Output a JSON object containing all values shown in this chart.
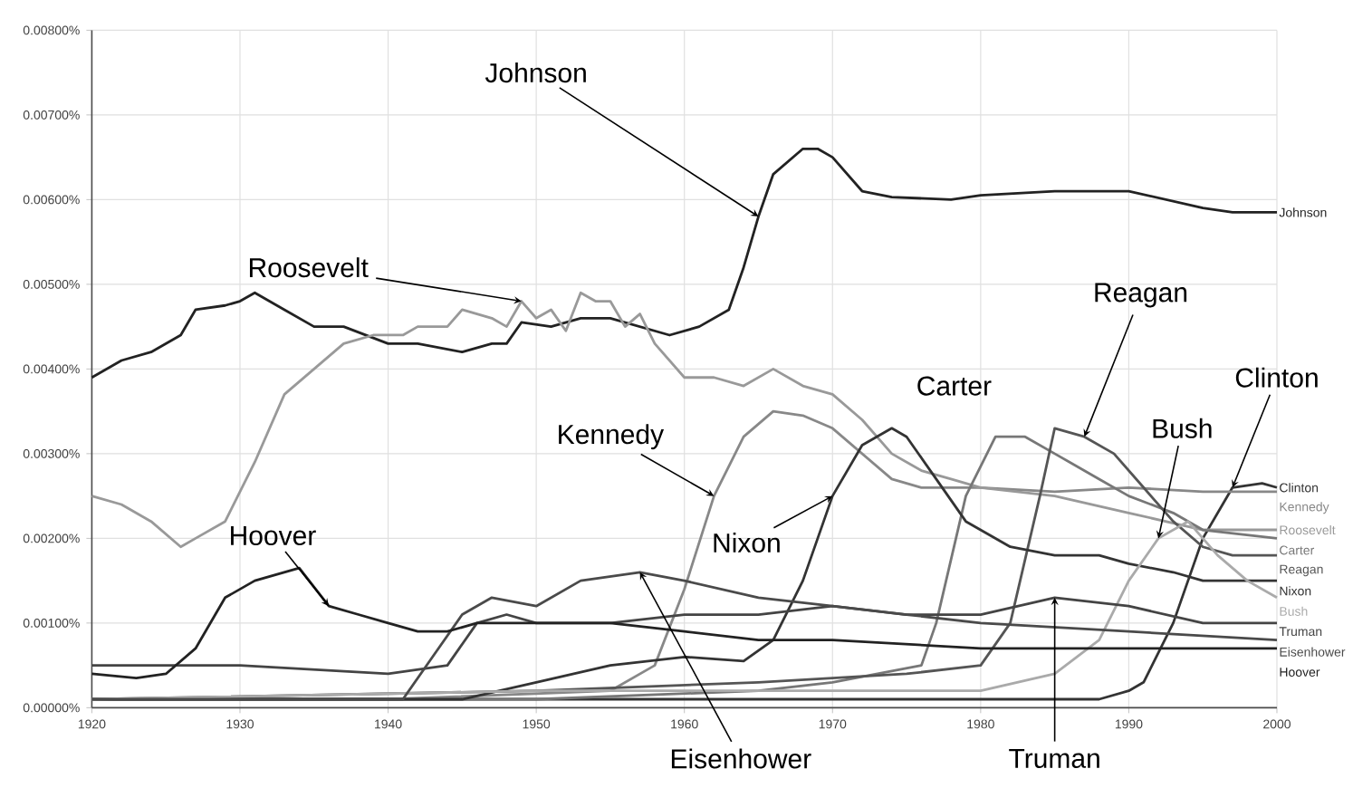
{
  "chart_data": {
    "type": "line",
    "grid": true,
    "xlim": [
      1920,
      2000
    ],
    "xticks": [
      1920,
      1930,
      1940,
      1950,
      1960,
      1970,
      1980,
      1990,
      2000
    ],
    "ylim": [
      0,
      0.008
    ],
    "yticks": [
      {
        "value": 0,
        "label": "0.00000%"
      },
      {
        "value": 0.001,
        "label": "0.00100%"
      },
      {
        "value": 0.002,
        "label": "0.00200%"
      },
      {
        "value": 0.003,
        "label": "0.00300%"
      },
      {
        "value": 0.004,
        "label": "0.00400%"
      },
      {
        "value": 0.005,
        "label": "0.00500%"
      },
      {
        "value": 0.006,
        "label": "0.00600%"
      },
      {
        "value": 0.007,
        "label": "0.00700%"
      },
      {
        "value": 0.008,
        "label": "0.00800%"
      }
    ],
    "series": [
      {
        "name": "Johnson",
        "color": "#222222",
        "x": [
          1920,
          1922,
          1924,
          1926,
          1927,
          1929,
          1930,
          1931,
          1933,
          1935,
          1937,
          1940,
          1942,
          1945,
          1947,
          1948,
          1949,
          1951,
          1953,
          1955,
          1957,
          1959,
          1961,
          1963,
          1964,
          1965,
          1966,
          1968,
          1969,
          1970,
          1972,
          1974,
          1978,
          1980,
          1985,
          1990,
          1995,
          1997,
          2000
        ],
        "values": [
          0.0039,
          0.0041,
          0.0042,
          0.0044,
          0.0047,
          0.00475,
          0.0048,
          0.0049,
          0.0047,
          0.0045,
          0.0045,
          0.0043,
          0.0043,
          0.0042,
          0.0043,
          0.0043,
          0.00455,
          0.0045,
          0.0046,
          0.0046,
          0.0045,
          0.0044,
          0.0045,
          0.0047,
          0.0052,
          0.0058,
          0.0063,
          0.0066,
          0.0066,
          0.0065,
          0.0061,
          0.00603,
          0.006,
          0.00605,
          0.0061,
          0.0061,
          0.0059,
          0.00585,
          0.00585
        ]
      },
      {
        "name": "Clinton",
        "color": "#333333",
        "x": [
          1920,
          1950,
          1980,
          1988,
          1990,
          1991,
          1993,
          1995,
          1997,
          1999,
          2000
        ],
        "values": [
          0.0001,
          0.0001,
          0.0001,
          0.0001,
          0.0002,
          0.0003,
          0.001,
          0.002,
          0.0026,
          0.00265,
          0.0026
        ]
      },
      {
        "name": "Kennedy",
        "color": "#888888",
        "x": [
          1920,
          1940,
          1955,
          1958,
          1960,
          1962,
          1964,
          1966,
          1968,
          1970,
          1972,
          1974,
          1976,
          1978,
          1980,
          1985,
          1990,
          1995,
          2000
        ],
        "values": [
          0.0001,
          0.0001,
          0.0002,
          0.0005,
          0.0014,
          0.0025,
          0.0032,
          0.0035,
          0.00345,
          0.0033,
          0.003,
          0.0027,
          0.0026,
          0.0026,
          0.0026,
          0.00255,
          0.0026,
          0.00255,
          0.00255
        ]
      },
      {
        "name": "Roosevelt",
        "color": "#999999",
        "x": [
          1920,
          1922,
          1924,
          1926,
          1927,
          1929,
          1931,
          1933,
          1935,
          1937,
          1939,
          1941,
          1942,
          1944,
          1945,
          1947,
          1948,
          1949,
          1950,
          1951,
          1952,
          1953,
          1954,
          1955,
          1956,
          1957,
          1958,
          1960,
          1962,
          1964,
          1966,
          1968,
          1970,
          1972,
          1974,
          1976,
          1978,
          1980,
          1985,
          1990,
          1995,
          2000
        ],
        "values": [
          0.0025,
          0.0024,
          0.0022,
          0.0019,
          0.002,
          0.0022,
          0.0029,
          0.0037,
          0.004,
          0.0043,
          0.0044,
          0.0044,
          0.0045,
          0.0045,
          0.0047,
          0.0046,
          0.0045,
          0.0048,
          0.0046,
          0.0047,
          0.00445,
          0.0049,
          0.0048,
          0.0048,
          0.0045,
          0.00465,
          0.0043,
          0.0039,
          0.0039,
          0.0038,
          0.004,
          0.0038,
          0.0037,
          0.0034,
          0.003,
          0.0028,
          0.0027,
          0.0026,
          0.0025,
          0.0023,
          0.0021,
          0.0021
        ]
      },
      {
        "name": "Carter",
        "color": "#777777",
        "x": [
          1920,
          1950,
          1965,
          1970,
          1976,
          1977,
          1979,
          1981,
          1983,
          1985,
          1988,
          1990,
          1993,
          1995,
          2000
        ],
        "values": [
          0.0001,
          0.0001,
          0.0002,
          0.0003,
          0.0005,
          0.001,
          0.0025,
          0.0032,
          0.0032,
          0.003,
          0.0027,
          0.0025,
          0.0023,
          0.0021,
          0.002
        ]
      },
      {
        "name": "Reagan",
        "color": "#555555",
        "x": [
          1920,
          1950,
          1965,
          1975,
          1980,
          1982,
          1984,
          1985,
          1987,
          1989,
          1991,
          1993,
          1995,
          1997,
          2000
        ],
        "values": [
          0.0001,
          0.0002,
          0.0003,
          0.0004,
          0.0005,
          0.001,
          0.0025,
          0.0033,
          0.0032,
          0.003,
          0.0026,
          0.0022,
          0.0019,
          0.0018,
          0.0018
        ]
      },
      {
        "name": "Nixon",
        "color": "#333333",
        "x": [
          1920,
          1945,
          1950,
          1955,
          1960,
          1964,
          1966,
          1968,
          1970,
          1972,
          1974,
          1975,
          1977,
          1979,
          1982,
          1985,
          1988,
          1990,
          1993,
          1995,
          2000
        ],
        "values": [
          0.0001,
          0.0001,
          0.0003,
          0.0005,
          0.0006,
          0.00055,
          0.0008,
          0.0015,
          0.0025,
          0.0031,
          0.0033,
          0.0032,
          0.0027,
          0.0022,
          0.0019,
          0.0018,
          0.0018,
          0.0017,
          0.0016,
          0.0015,
          0.0015
        ]
      },
      {
        "name": "Bush",
        "color": "#aaaaaa",
        "x": [
          1920,
          1950,
          1980,
          1985,
          1988,
          1990,
          1992,
          1994,
          1996,
          1998,
          2000
        ],
        "values": [
          0.0001,
          0.0002,
          0.0002,
          0.0004,
          0.0008,
          0.0015,
          0.002,
          0.0022,
          0.0018,
          0.0015,
          0.0013
        ]
      },
      {
        "name": "Truman",
        "color": "#444444",
        "x": [
          1920,
          1930,
          1940,
          1944,
          1946,
          1948,
          1950,
          1955,
          1960,
          1965,
          1970,
          1975,
          1980,
          1985,
          1990,
          1995,
          2000
        ],
        "values": [
          0.0005,
          0.0005,
          0.0004,
          0.0005,
          0.001,
          0.0011,
          0.001,
          0.001,
          0.0011,
          0.0011,
          0.0012,
          0.0011,
          0.0011,
          0.0013,
          0.0012,
          0.001,
          0.001
        ]
      },
      {
        "name": "Eisenhower",
        "color": "#4a4a4a",
        "x": [
          1920,
          1940,
          1941,
          1943,
          1945,
          1947,
          1950,
          1953,
          1957,
          1960,
          1965,
          1970,
          1975,
          1980,
          1990,
          2000
        ],
        "values": [
          0.0001,
          0.0001,
          0.0001,
          0.0006,
          0.0011,
          0.0013,
          0.0012,
          0.0015,
          0.0016,
          0.0015,
          0.0013,
          0.0012,
          0.0011,
          0.001,
          0.0009,
          0.0008
        ]
      },
      {
        "name": "Hoover",
        "color": "#222222",
        "x": [
          1920,
          1923,
          1925,
          1927,
          1929,
          1931,
          1933,
          1934,
          1936,
          1938,
          1940,
          1942,
          1944,
          1946,
          1950,
          1955,
          1960,
          1965,
          1970,
          1980,
          1990,
          2000
        ],
        "values": [
          0.0004,
          0.00035,
          0.0004,
          0.0007,
          0.0013,
          0.0015,
          0.0016,
          0.00165,
          0.0012,
          0.0011,
          0.001,
          0.0009,
          0.0009,
          0.001,
          0.001,
          0.001,
          0.0009,
          0.0008,
          0.0008,
          0.0007,
          0.0007,
          0.0007
        ]
      }
    ],
    "annotations": [
      {
        "text": "Johnson",
        "x": 1965,
        "y": 0.0058
      },
      {
        "text": "Roosevelt",
        "x": 1949,
        "y": 0.0048
      },
      {
        "text": "Kennedy",
        "x": 1962,
        "y": 0.0025
      },
      {
        "text": "Nixon",
        "x": 1970,
        "y": 0.0025
      },
      "Carter",
      {
        "text": "Reagan",
        "x": 1987,
        "y": 0.0032
      },
      {
        "text": "Clinton",
        "x": 1997,
        "y": 0.0026
      },
      {
        "text": "Bush",
        "x": 1992,
        "y": 0.002
      },
      {
        "text": "Hoover",
        "x": 1936,
        "y": 0.0012
      },
      {
        "text": "Eisenhower",
        "x": 1957,
        "y": 0.0016
      },
      {
        "text": "Truman",
        "x": 1985,
        "y": 0.0013
      }
    ]
  }
}
